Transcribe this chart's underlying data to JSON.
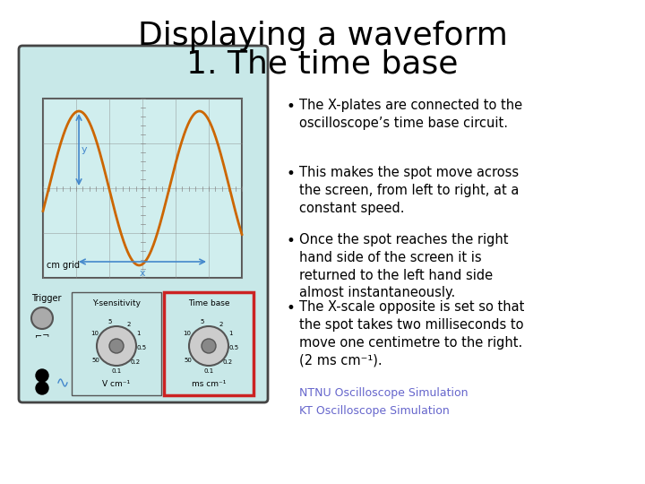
{
  "title_line1": "Displaying a waveform",
  "title_line2": "1. The time base",
  "title_fontsize": 26,
  "background_color": "#ffffff",
  "bullet_points": [
    "The X-plates are connected to the\noscilloscope’s time base circuit.",
    "This makes the spot move across\nthe screen, from left to right, at a\nconstant speed.",
    "Once the spot reaches the right\nhand side of the screen it is\nreturned to the left hand side\nalmost instantaneously.",
    "The X-scale opposite is set so that\nthe spot takes two milliseconds to\nmove one centimetre to the right.\n(2 ms cm⁻¹)."
  ],
  "bullet_fontsize": 10.5,
  "link1": "NTNU Oscilloscope Simulation",
  "link2": "KT Oscilloscope Simulation",
  "link_fontsize": 9,
  "osc_bg": "#c8e8e8",
  "screen_bg": "#d0eeee",
  "wave_color": "#cc6600",
  "grid_color": "#888888",
  "panel_bg": "#c8e8e8",
  "knob_color": "#888888",
  "highlight_color": "#cc2222"
}
